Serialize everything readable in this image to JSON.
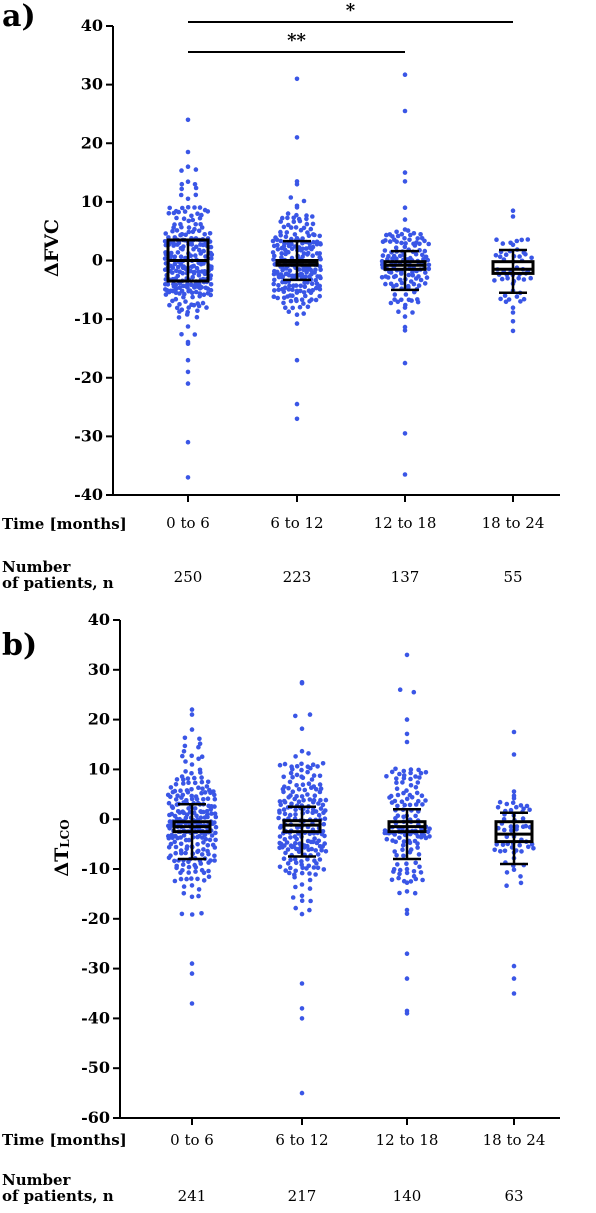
{
  "chart_data": [
    {
      "type": "scatter",
      "panel_label": "a)",
      "ylabel": "ΔFVC",
      "ylim": [
        -40,
        40
      ],
      "yticks": [
        40,
        30,
        20,
        10,
        0,
        -10,
        -20,
        -30,
        -40
      ],
      "categories": [
        "0 to 6",
        "6 to 12",
        "12 to 18",
        "18 to 24"
      ],
      "row1_label": "Time [months]",
      "row2_label_line1": "Number",
      "row2_label_line2": "of patients, n",
      "n": [
        "250",
        "223",
        "137",
        "55"
      ],
      "point_color": "#3a56e6",
      "boxes": [
        {
          "q1": -3.5,
          "median": 0,
          "q3": 3.5,
          "whisker_low": -3.5,
          "whisker_high": 3.5
        },
        {
          "q1": -0.8,
          "median": -0.3,
          "q3": 0,
          "whisker_low": -3.3,
          "whisker_high": 3.3
        },
        {
          "q1": -1.5,
          "median": -0.8,
          "q3": -0.2,
          "whisker_low": -5.0,
          "whisker_high": 1.6
        },
        {
          "q1": -2.2,
          "median": -1.5,
          "q3": -0.2,
          "whisker_low": -5.5,
          "whisker_high": 1.8
        }
      ],
      "points": [
        {
          "n": 250,
          "center": 0,
          "spread": 7.5,
          "outliers": [
            24,
            18.5,
            16,
            15.5,
            13,
            -17,
            -19,
            -21,
            -31,
            -37
          ]
        },
        {
          "n": 223,
          "center": -0.5,
          "spread": 6,
          "outliers": [
            31,
            21,
            13.5,
            13,
            -17,
            -24.5,
            -27
          ]
        },
        {
          "n": 137,
          "center": -1,
          "spread": 5,
          "outliers": [
            31.7,
            25.5,
            15,
            13.5,
            -17.5,
            -29.5,
            -36.5
          ]
        },
        {
          "n": 55,
          "center": -1.5,
          "spread": 4.5,
          "outliers": [
            8.5,
            7.5,
            -12
          ]
        }
      ],
      "significance": [
        {
          "label": "*",
          "from": "0 to 6",
          "to": "18 to 24"
        },
        {
          "label": "**",
          "from": "0 to 6",
          "to": "12 to 18"
        }
      ]
    },
    {
      "type": "scatter",
      "panel_label": "b)",
      "ylabel_main": "ΔT",
      "ylabel_sub": "LCO",
      "ylim": [
        -60,
        40
      ],
      "yticks": [
        40,
        30,
        20,
        10,
        0,
        -10,
        -20,
        -30,
        -40,
        -50,
        -60
      ],
      "categories": [
        "0 to 6",
        "6 to 12",
        "12 to 18",
        "18 to 24"
      ],
      "row1_label": "Time [months]",
      "row2_label_line1": "Number",
      "row2_label_line2": "of patients, n",
      "n": [
        "241",
        "217",
        "140",
        "63"
      ],
      "point_color": "#3a56e6",
      "boxes": [
        {
          "q1": -2.5,
          "median": -1.5,
          "q3": -0.5,
          "whisker_low": -8,
          "whisker_high": 3
        },
        {
          "q1": -2.5,
          "median": -1.2,
          "q3": -0.3,
          "whisker_low": -7.5,
          "whisker_high": 2.5
        },
        {
          "q1": -2.5,
          "median": -1.5,
          "q3": -0.5,
          "whisker_low": -8,
          "whisker_high": 2
        },
        {
          "q1": -4.5,
          "median": -3.0,
          "q3": -0.5,
          "whisker_low": -9,
          "whisker_high": 1.3
        }
      ],
      "points": [
        {
          "n": 241,
          "center": -1.5,
          "spread": 9,
          "outliers": [
            22,
            21,
            18,
            -29,
            -31,
            -37
          ]
        },
        {
          "n": 217,
          "center": -1,
          "spread": 9,
          "outliers": [
            27.5,
            27.3,
            21,
            -33,
            -38,
            -40,
            -55
          ]
        },
        {
          "n": 140,
          "center": -1.5,
          "spread": 10,
          "outliers": [
            33,
            26,
            25.5,
            20,
            -27,
            -32,
            -38.5,
            -39
          ]
        },
        {
          "n": 63,
          "center": -3,
          "spread": 7.5,
          "outliers": [
            17.5,
            13,
            -29.5,
            -32,
            -35
          ]
        }
      ]
    }
  ]
}
